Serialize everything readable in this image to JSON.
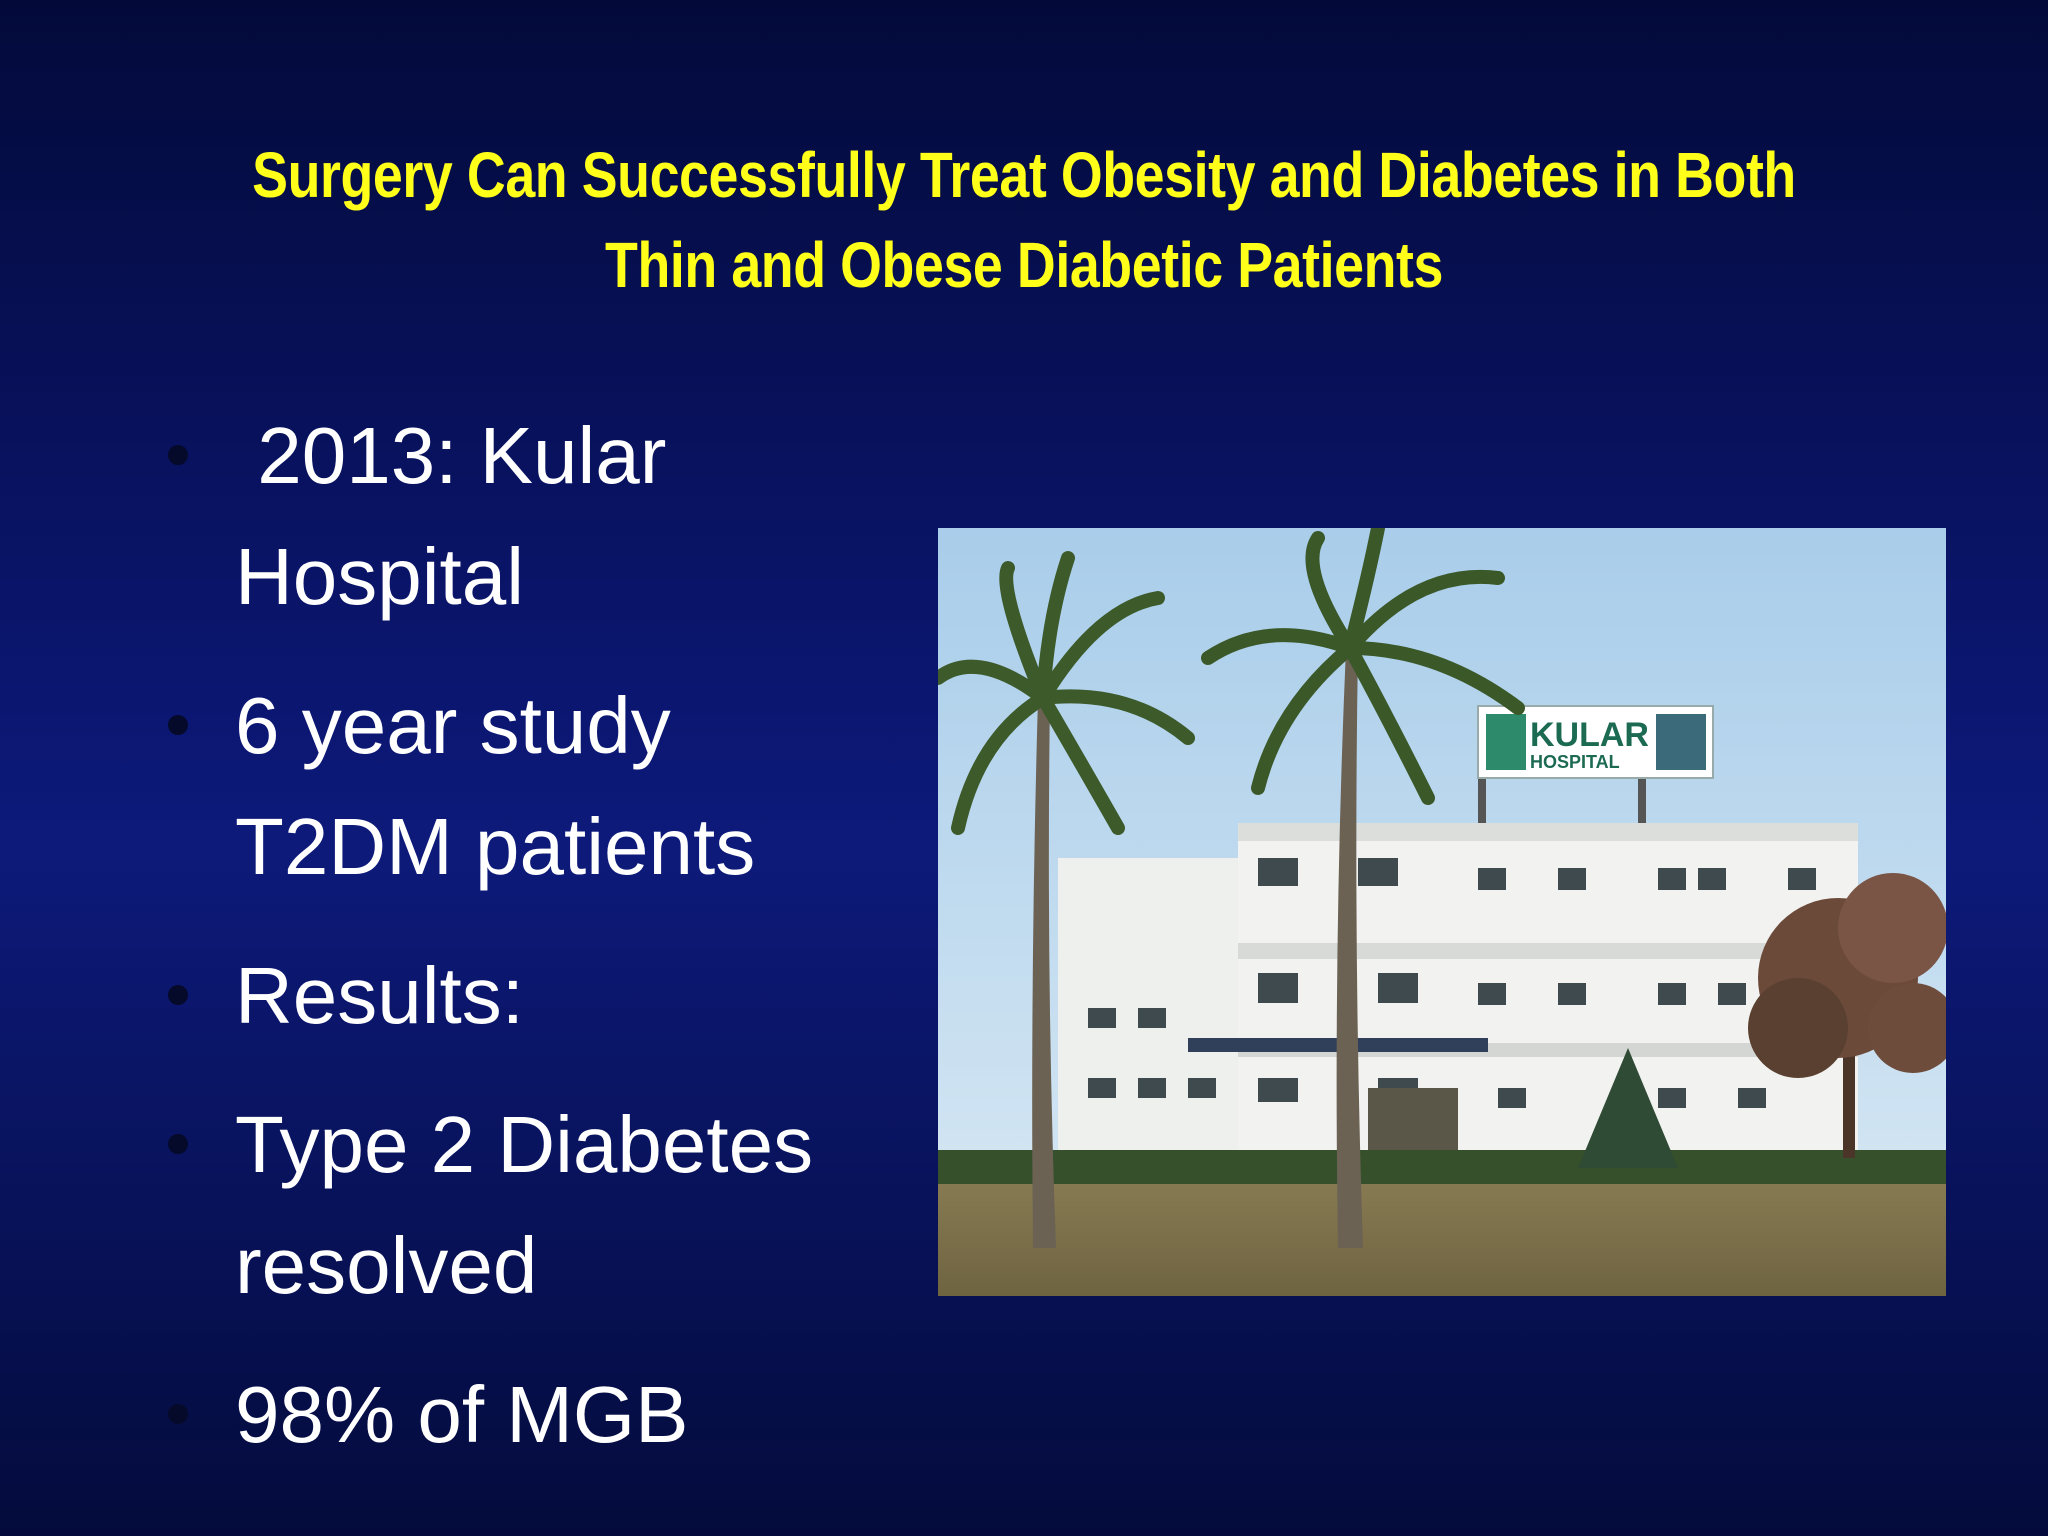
{
  "slide": {
    "title_line1": "Surgery Can Successfully Treat Obesity and Diabetes in Both",
    "title_line2": "Thin and Obese Diabetic Patients",
    "bullets": [
      {
        "line1": " 2013: Kular",
        "line2": "Hospital"
      },
      {
        "line1": "6 year study",
        "line2": "T2DM patients"
      },
      {
        "line1": "Results:",
        "line2": ""
      },
      {
        "line1": "Type 2 Diabetes",
        "line2": "resolved"
      },
      {
        "line1": "98% of MGB",
        "line2": ""
      }
    ],
    "photo": {
      "sign_word1": "KULAR",
      "sign_word2": "HOSPITAL"
    }
  },
  "colors": {
    "title": "#ffff1a",
    "body_text": "#ffffff",
    "background": "#0b1670"
  }
}
